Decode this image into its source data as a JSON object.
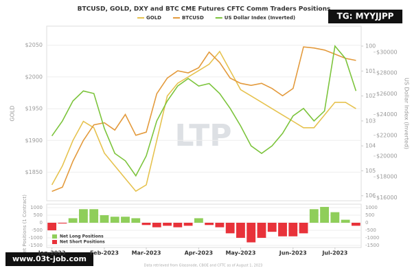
{
  "chart_data": [
    {
      "type": "line",
      "title": "BTCUSD, GOLD, DXY and BTC CME Futures CFTC Comm Traders Positions",
      "y_label": "GOLD",
      "y2_label": "US Dollar Index (Inverted)",
      "watermark": "LTP",
      "categories": [
        "Jan-2023",
        null,
        null,
        null,
        null,
        "Feb-2023",
        null,
        null,
        null,
        "Mar-2023",
        null,
        null,
        null,
        null,
        "Apr-2023",
        null,
        null,
        null,
        "May-2023",
        null,
        null,
        null,
        null,
        "Jun-2023",
        null,
        null,
        null,
        "Jul-2023",
        null,
        null
      ],
      "ylim": [
        1805,
        2080
      ],
      "yticks": [
        {
          "value": 1850,
          "label": "$1850"
        },
        {
          "value": 1900,
          "label": "$1900"
        },
        {
          "value": 1950,
          "label": "$1950"
        },
        {
          "value": 2000,
          "label": "$2000"
        },
        {
          "value": 2050,
          "label": "$2050"
        }
      ],
      "y2lim": [
        99.2,
        106.2
      ],
      "y2_inverted": true,
      "y2ticks": [
        100,
        101,
        102,
        103,
        104,
        105,
        106
      ],
      "y3lim": [
        15700,
        32500
      ],
      "y3ticks": [
        {
          "value": 16000,
          "label": "$16000"
        },
        {
          "value": 18000,
          "label": "$18000"
        },
        {
          "value": 20000,
          "label": "$20000"
        },
        {
          "value": 22000,
          "label": "$22000"
        },
        {
          "value": 24000,
          "label": "$24000"
        },
        {
          "value": 26000,
          "label": "$26000"
        },
        {
          "value": 28000,
          "label": "$28000"
        },
        {
          "value": 30000,
          "label": "$30000"
        }
      ],
      "grid": true,
      "series": [
        {
          "name": "GOLD",
          "color": "#e6c24e",
          "axis": "y",
          "values": [
            1830,
            1860,
            1900,
            1930,
            1920,
            1880,
            1860,
            1840,
            1820,
            1830,
            1900,
            1970,
            1990,
            2000,
            2010,
            2020,
            2040,
            2010,
            1980,
            1970,
            1960,
            1950,
            1940,
            1930,
            1920,
            1920,
            1940,
            1960,
            1960,
            1950
          ]
        },
        {
          "name": "BTCUSD",
          "color": "#e39a3c",
          "axis": "y3",
          "values": [
            16600,
            17000,
            19500,
            21500,
            23000,
            23200,
            22500,
            24000,
            22000,
            22300,
            26000,
            27500,
            28200,
            28000,
            28500,
            30000,
            29000,
            27500,
            27000,
            26800,
            27000,
            26500,
            25800,
            26500,
            30500,
            30400,
            30200,
            29800,
            29400,
            29200
          ]
        },
        {
          "name": "US Dollar Index (Inverted)",
          "color": "#7cc43c",
          "axis": "y2",
          "values": [
            103.6,
            103.0,
            102.2,
            101.8,
            101.9,
            103.3,
            104.3,
            104.6,
            105.2,
            104.4,
            103.0,
            102.2,
            101.6,
            101.3,
            101.6,
            101.5,
            101.9,
            102.5,
            103.2,
            104.0,
            104.3,
            104.0,
            103.5,
            102.8,
            102.5,
            103.0,
            102.6,
            100.0,
            100.5,
            101.8
          ]
        }
      ]
    },
    {
      "type": "bar",
      "y_label": "Net Positions (1 Contract)",
      "ylim": [
        -1640,
        1230
      ],
      "yticks": [
        -1500,
        -1000,
        -500,
        0,
        500,
        1000
      ],
      "positive_color": "#8fce5a",
      "negative_color": "#e8323a",
      "legend": [
        {
          "name": "Net Long Positions",
          "color": "#8fce5a"
        },
        {
          "name": "Net Short Positions",
          "color": "#e8323a"
        }
      ],
      "values": [
        -500,
        -50,
        300,
        900,
        900,
        500,
        400,
        400,
        300,
        -150,
        -300,
        -200,
        -300,
        -200,
        300,
        -150,
        -300,
        -700,
        -1000,
        -1300,
        -1000,
        -600,
        -900,
        -900,
        -700,
        900,
        1050,
        700,
        200,
        -200
      ]
    }
  ],
  "overlays": {
    "footer": "Data retrieved from Glassnode, CBOE and CFTC as of August 1, 2023",
    "top_badge": "TG: MYYJJPP",
    "bottom_badge": "www.03t-job.com"
  }
}
